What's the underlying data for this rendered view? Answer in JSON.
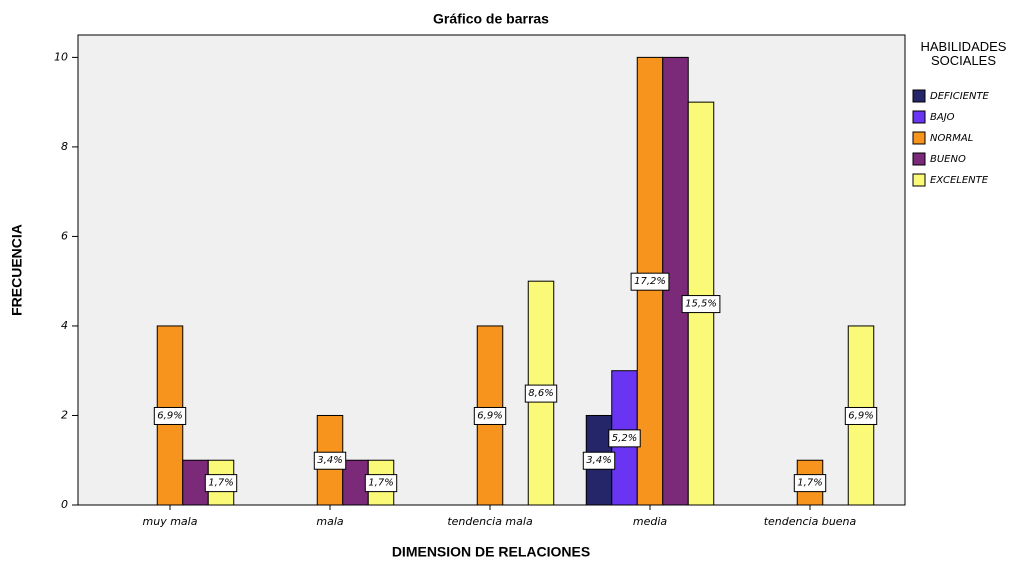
{
  "chart_data": {
    "type": "bar",
    "title": "Gráfico de barras",
    "x_label": "DIMENSION DE RELACIONES",
    "y_label": "FRECUENCIA",
    "legend_title": "HABILIDADES SOCIALES",
    "categories": [
      "muy mala",
      "mala",
      "tendencia mala",
      "media",
      "tendencia buena"
    ],
    "ylim": [
      0,
      10.5
    ],
    "yticks": [
      0,
      2,
      4,
      6,
      8,
      10
    ],
    "series": [
      {
        "name": "DEFICIENTE",
        "color": "#25256a",
        "values": [
          0,
          0,
          0,
          2,
          0
        ],
        "percents": [
          null,
          null,
          null,
          3.4,
          null
        ],
        "percent_labels": [
          null,
          null,
          null,
          "3,4%",
          null
        ]
      },
      {
        "name": "BAJO",
        "color": "#6a35f2",
        "values": [
          0,
          0,
          0,
          3,
          0
        ],
        "percents": [
          null,
          null,
          null,
          5.2,
          null
        ],
        "percent_labels": [
          null,
          null,
          null,
          "5,2%",
          null
        ]
      },
      {
        "name": "NORMAL",
        "color": "#f7941d",
        "values": [
          4,
          2,
          4,
          10,
          1
        ],
        "percents": [
          6.9,
          3.4,
          6.9,
          17.2,
          1.7
        ],
        "percent_labels": [
          "6,9%",
          "3,4%",
          "6,9%",
          "17,2%",
          "1,7%"
        ]
      },
      {
        "name": "BUENO",
        "color": "#7a2a78",
        "values": [
          1,
          1,
          0,
          10,
          0
        ],
        "percents": [
          null,
          null,
          null,
          null,
          null
        ],
        "percent_labels": [
          null,
          null,
          null,
          null,
          null
        ]
      },
      {
        "name": "EXCELENTE",
        "color": "#fafa78",
        "values": [
          1,
          1,
          5,
          9,
          4
        ],
        "percents": [
          1.7,
          1.7,
          8.6,
          15.5,
          6.9
        ],
        "percent_labels": [
          "1,7%",
          "1,7%",
          "8,6%",
          "15,5%",
          "6,9%"
        ]
      }
    ]
  }
}
